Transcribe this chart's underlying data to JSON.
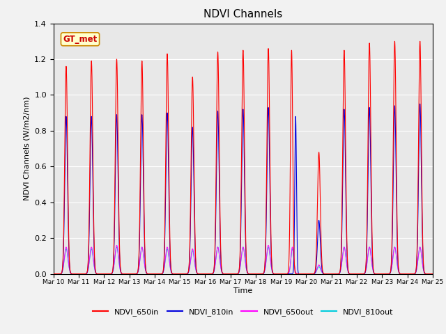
{
  "title": "NDVI Channels",
  "xlabel": "Time",
  "ylabel": "NDVI Channels (W/m2/nm)",
  "annotation_text": "GT_met",
  "ylim": [
    0,
    1.4
  ],
  "x_tick_labels": [
    "Mar 10",
    "Mar 11",
    "Mar 12",
    "Mar 13",
    "Mar 14",
    "Mar 15",
    "Mar 16",
    "Mar 17",
    "Mar 18",
    "Mar 19",
    "Mar 20",
    "Mar 21",
    "Mar 22",
    "Mar 23",
    "Mar 24",
    "Mar 25"
  ],
  "colors": {
    "NDVI_650in": "#ff0000",
    "NDVI_810in": "#0000dd",
    "NDVI_650out": "#ff00ff",
    "NDVI_810out": "#00ccdd"
  },
  "peak_650in": [
    1.16,
    1.19,
    1.2,
    1.19,
    1.23,
    1.1,
    1.24,
    1.25,
    1.26,
    1.25,
    0.68,
    1.25,
    1.29,
    1.3,
    1.3
  ],
  "peak_810in": [
    0.88,
    0.88,
    0.89,
    0.89,
    0.9,
    0.82,
    0.91,
    0.92,
    0.93,
    0.88,
    0.3,
    0.92,
    0.93,
    0.94,
    0.95
  ],
  "peak_650out": [
    0.15,
    0.15,
    0.16,
    0.15,
    0.15,
    0.14,
    0.15,
    0.15,
    0.16,
    0.15,
    0.05,
    0.15,
    0.15,
    0.15,
    0.15
  ],
  "peak_810out": [
    0.14,
    0.14,
    0.15,
    0.15,
    0.14,
    0.13,
    0.15,
    0.15,
    0.15,
    0.14,
    0.04,
    0.15,
    0.15,
    0.15,
    0.15
  ],
  "background_color": "#f2f2f2",
  "plot_bg_color": "#e8e8e8",
  "sigma_in": 0.055,
  "sigma_out": 0.07,
  "anomaly_day": 9
}
